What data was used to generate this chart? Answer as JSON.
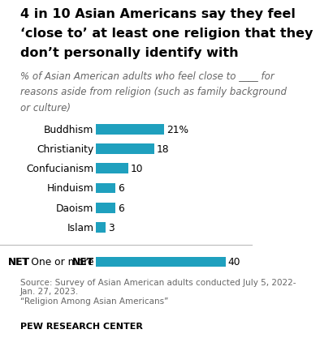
{
  "title_line1": "4 in 10 Asian Americans say they feel",
  "title_line2": "‘close to’ at least one religion that they",
  "title_line3": "don’t personally identify with",
  "subtitle_line1": "% of Asian American adults who feel close to ____ for",
  "subtitle_line2": "reasons aside from religion (such as family background",
  "subtitle_line3": "or culture)",
  "categories": [
    "Buddhism",
    "Christianity",
    "Confucianism",
    "Hinduism",
    "Daoism",
    "Islam"
  ],
  "values": [
    21,
    18,
    10,
    6,
    6,
    3
  ],
  "net_label_bold": "NET",
  "net_label_normal": " One or more",
  "net_value": 40,
  "bar_color": "#1fa0be",
  "value_labels": [
    "21%",
    "18",
    "10",
    "6",
    "6",
    "3"
  ],
  "net_value_label": "40",
  "source_text": "Source: Survey of Asian American adults conducted July 5, 2022-\nJan. 27, 2023.\n“Religion Among Asian Americans”",
  "footer": "PEW RESEARCH CENTER",
  "xlim": [
    0,
    48
  ],
  "background_color": "#ffffff",
  "title_fontsize": 11.5,
  "subtitle_fontsize": 8.5,
  "label_fontsize": 8.8,
  "value_fontsize": 8.8,
  "source_fontsize": 7.5,
  "footer_fontsize": 8.0
}
